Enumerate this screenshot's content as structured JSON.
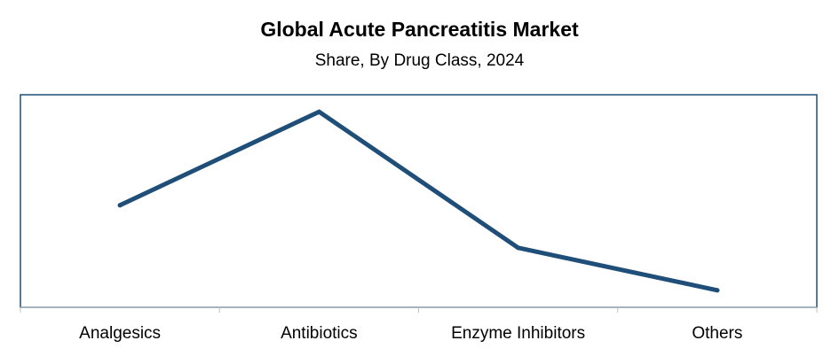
{
  "chart_data": {
    "type": "line",
    "title": "Global Acute Pancreatitis Market",
    "subtitle": "Share, By Drug Class, 2024",
    "categories": [
      "Analgesics",
      "Antibiotics",
      "Enzyme Inhibitors",
      "Others"
    ],
    "series": [
      {
        "values": [
          48,
          92,
          28,
          8
        ]
      }
    ],
    "ylim": [
      0,
      100
    ],
    "grid": false,
    "legend": "none",
    "colors": {
      "line": "#1f4e79",
      "frame": "#1f4e79",
      "axis": "#bfbfbf"
    }
  }
}
